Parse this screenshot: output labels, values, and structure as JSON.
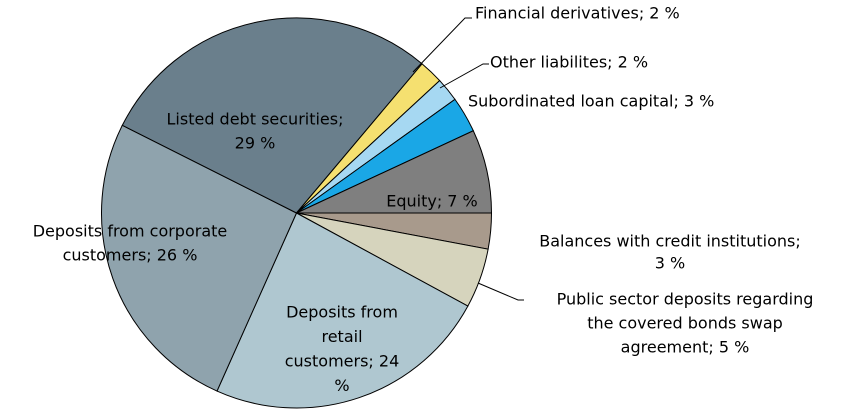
{
  "chart_data": {
    "type": "pie",
    "labels": [
      [
        "Balances with credit institutions;",
        "3 %"
      ],
      [
        "Public sector deposits regarding",
        "the covered bonds swap",
        "agreement; 5 %"
      ],
      [
        "Deposits from",
        "retail",
        "customers; 24",
        "%"
      ],
      [
        "Deposits from corporate",
        "customers; 26 %"
      ],
      [
        "Listed debt securities;",
        "29 %"
      ],
      [
        "Financial derivatives; 2 %"
      ],
      [
        "Other liabilites; 2 %"
      ],
      [
        "Subordinated loan capital; 3 %"
      ],
      [
        "Equity; 7 %"
      ]
    ],
    "values": [
      3,
      5,
      24,
      26,
      29,
      2,
      2,
      3,
      7
    ],
    "colors": [
      "#a89a8c",
      "#d6d4bd",
      "#afc7d0",
      "#8fa3ad",
      "#6a7f8c",
      "#f5e070",
      "#a6d8f2",
      "#1aa7e6",
      "#7f7f7f"
    ]
  }
}
